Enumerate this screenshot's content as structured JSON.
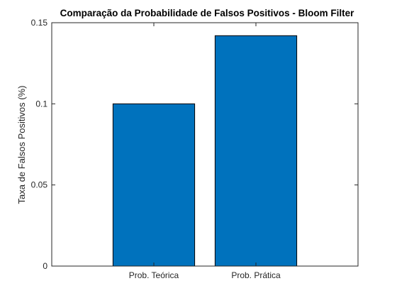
{
  "chart_data": {
    "type": "bar",
    "title": "Comparação da Probabilidade de Falsos Positivos - Bloom Filter",
    "xlabel": "",
    "ylabel": "Taxa de Falsos Positivos (%)",
    "categories": [
      "Prob. Teórica",
      "Prob. Prática"
    ],
    "values": [
      0.1,
      0.142
    ],
    "ylim": [
      0,
      0.15
    ],
    "yticks": [
      0,
      0.05,
      0.1,
      0.15
    ],
    "ytick_labels": [
      "0",
      "0.05",
      "0.1",
      "0.15"
    ],
    "bar_color": "#0072bd",
    "edge_color": "#000000",
    "grid": false,
    "legend": "none"
  }
}
